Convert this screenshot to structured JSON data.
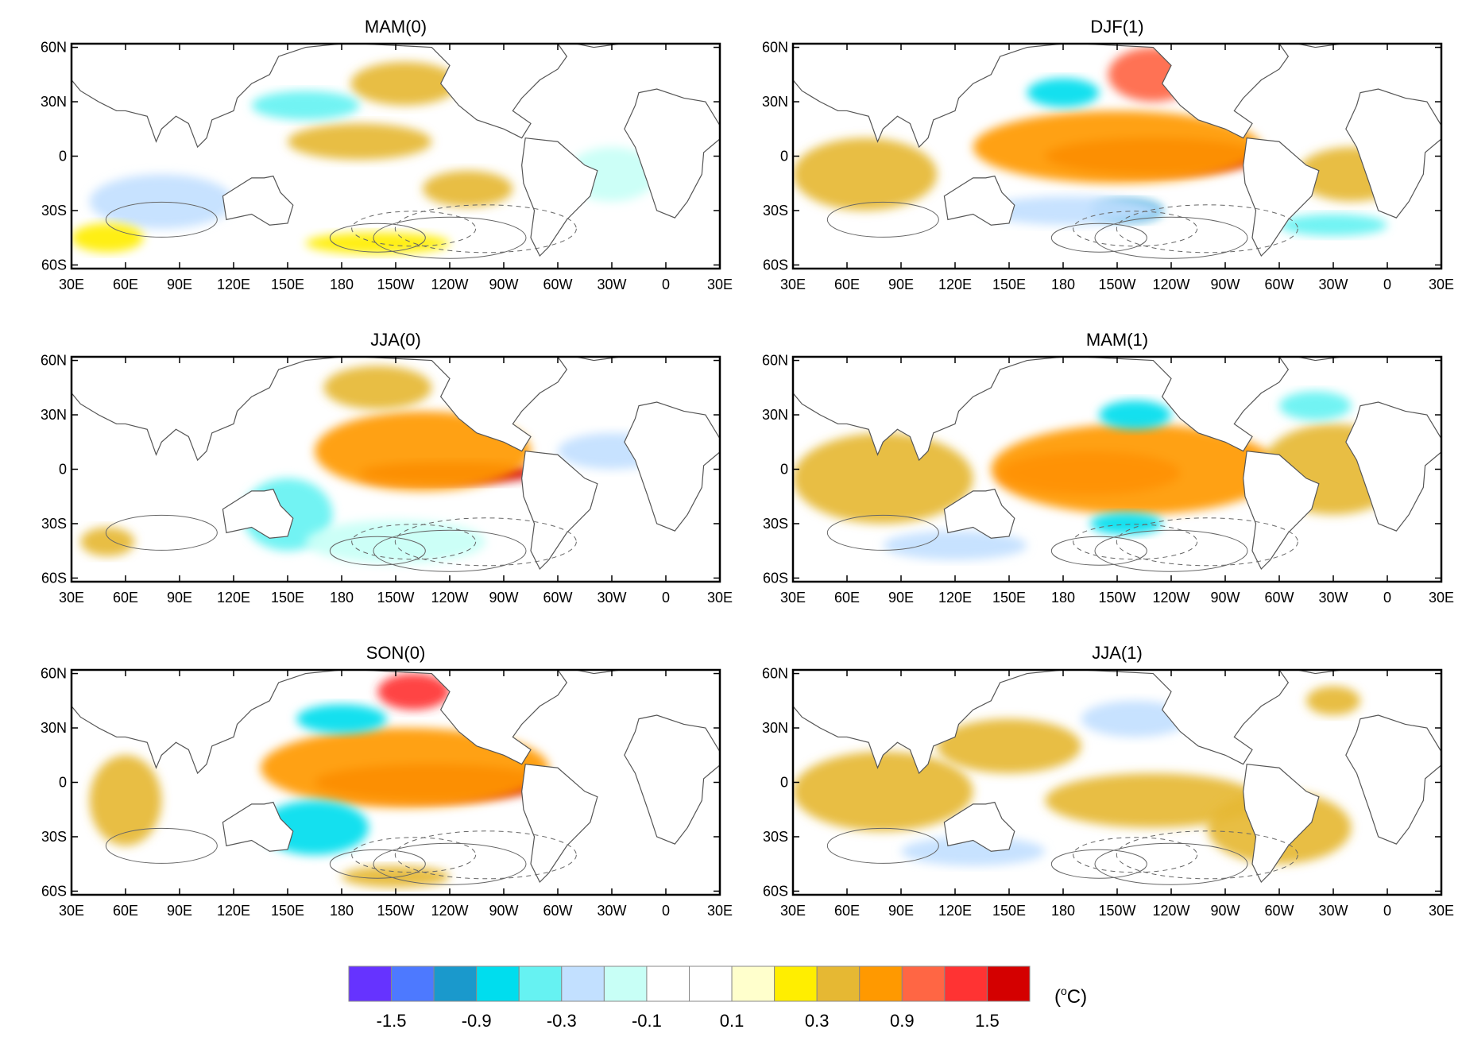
{
  "figure": {
    "unit_label": "(oC)",
    "unit_base": "(",
    "unit_sup": "o",
    "unit_tail": "C)"
  },
  "axes": {
    "lat_ticks": [
      "60N",
      "30N",
      "0",
      "30S",
      "60S"
    ],
    "lon_ticks": [
      "30E",
      "60E",
      "90E",
      "120E",
      "150E",
      "180",
      "150W",
      "120W",
      "90W",
      "60W",
      "30W",
      "0",
      "30E"
    ]
  },
  "panels": [
    {
      "id": "mam0",
      "title": "MAM(0)",
      "anomalies": [
        {
          "lon": 190,
          "lat": 8,
          "rx": 40,
          "ry": 10,
          "level": 11
        },
        {
          "lon": 215,
          "lat": 40,
          "rx": 30,
          "ry": 12,
          "level": 11
        },
        {
          "lon": 250,
          "lat": -18,
          "rx": 25,
          "ry": 10,
          "level": 11
        },
        {
          "lon": 160,
          "lat": 28,
          "rx": 30,
          "ry": 8,
          "level": 4
        },
        {
          "lon": 80,
          "lat": -25,
          "rx": 40,
          "ry": 15,
          "level": 5
        },
        {
          "lon": 50,
          "lat": -45,
          "rx": 20,
          "ry": 8,
          "level": 10
        },
        {
          "lon": 200,
          "lat": -48,
          "rx": 40,
          "ry": 6,
          "level": 10
        },
        {
          "lon": 330,
          "lat": -10,
          "rx": 25,
          "ry": 15,
          "level": 6
        }
      ]
    },
    {
      "id": "djf1",
      "title": "DJF(1)",
      "anomalies": [
        {
          "lon": 230,
          "lat": 0,
          "rx": 60,
          "ry": 10,
          "level": 15
        },
        {
          "lon": 210,
          "lat": 5,
          "rx": 80,
          "ry": 20,
          "level": 12
        },
        {
          "lon": 230,
          "lat": 45,
          "rx": 25,
          "ry": 15,
          "level": 13
        },
        {
          "lon": 180,
          "lat": 35,
          "rx": 20,
          "ry": 8,
          "level": 3
        },
        {
          "lon": 215,
          "lat": -30,
          "rx": 20,
          "ry": 6,
          "level": 2
        },
        {
          "lon": 70,
          "lat": -10,
          "rx": 40,
          "ry": 20,
          "level": 11
        },
        {
          "lon": 340,
          "lat": -10,
          "rx": 30,
          "ry": 15,
          "level": 11
        },
        {
          "lon": 330,
          "lat": -38,
          "rx": 30,
          "ry": 6,
          "level": 4
        },
        {
          "lon": 185,
          "lat": -30,
          "rx": 50,
          "ry": 8,
          "level": 5
        }
      ]
    },
    {
      "id": "jja0",
      "title": "JJA(0)",
      "anomalies": [
        {
          "lon": 240,
          "lat": -2,
          "rx": 50,
          "ry": 6,
          "level": 15
        },
        {
          "lon": 225,
          "lat": 10,
          "rx": 60,
          "ry": 22,
          "level": 12
        },
        {
          "lon": 200,
          "lat": 45,
          "rx": 30,
          "ry": 12,
          "level": 11
        },
        {
          "lon": 150,
          "lat": -25,
          "rx": 25,
          "ry": 20,
          "level": 4
        },
        {
          "lon": 210,
          "lat": -40,
          "rx": 50,
          "ry": 12,
          "level": 6
        },
        {
          "lon": 50,
          "lat": -40,
          "rx": 15,
          "ry": 8,
          "level": 11
        },
        {
          "lon": 330,
          "lat": 10,
          "rx": 30,
          "ry": 10,
          "level": 5
        }
      ]
    },
    {
      "id": "mam1",
      "title": "MAM(1)",
      "anomalies": [
        {
          "lon": 195,
          "lat": -2,
          "rx": 50,
          "ry": 12,
          "level": 14
        },
        {
          "lon": 220,
          "lat": 0,
          "rx": 80,
          "ry": 25,
          "level": 12
        },
        {
          "lon": 80,
          "lat": -5,
          "rx": 50,
          "ry": 25,
          "level": 11
        },
        {
          "lon": 330,
          "lat": 0,
          "rx": 40,
          "ry": 25,
          "level": 11
        },
        {
          "lon": 220,
          "lat": 30,
          "rx": 20,
          "ry": 8,
          "level": 3
        },
        {
          "lon": 215,
          "lat": -30,
          "rx": 20,
          "ry": 6,
          "level": 3
        },
        {
          "lon": 120,
          "lat": -42,
          "rx": 40,
          "ry": 8,
          "level": 5
        },
        {
          "lon": 320,
          "lat": 35,
          "rx": 20,
          "ry": 8,
          "level": 4
        }
      ]
    },
    {
      "id": "son0",
      "title": "SON(0)",
      "anomalies": [
        {
          "lon": 230,
          "lat": 0,
          "rx": 65,
          "ry": 10,
          "level": 15
        },
        {
          "lon": 215,
          "lat": 8,
          "rx": 80,
          "ry": 22,
          "level": 12
        },
        {
          "lon": 220,
          "lat": 50,
          "rx": 20,
          "ry": 10,
          "level": 14
        },
        {
          "lon": 180,
          "lat": 35,
          "rx": 25,
          "ry": 8,
          "level": 3
        },
        {
          "lon": 165,
          "lat": -25,
          "rx": 30,
          "ry": 15,
          "level": 3
        },
        {
          "lon": 60,
          "lat": -10,
          "rx": 20,
          "ry": 25,
          "level": 11
        },
        {
          "lon": 210,
          "lat": -52,
          "rx": 30,
          "ry": 6,
          "level": 11
        }
      ]
    },
    {
      "id": "jja1",
      "title": "JJA(1)",
      "anomalies": [
        {
          "lon": 80,
          "lat": -5,
          "rx": 50,
          "ry": 22,
          "level": 11
        },
        {
          "lon": 150,
          "lat": 20,
          "rx": 40,
          "ry": 15,
          "level": 11
        },
        {
          "lon": 230,
          "lat": -10,
          "rx": 60,
          "ry": 15,
          "level": 11
        },
        {
          "lon": 220,
          "lat": 35,
          "rx": 30,
          "ry": 10,
          "level": 5
        },
        {
          "lon": 300,
          "lat": -25,
          "rx": 40,
          "ry": 20,
          "level": 11
        },
        {
          "lon": 330,
          "lat": 45,
          "rx": 15,
          "ry": 8,
          "level": 11
        },
        {
          "lon": 130,
          "lat": -38,
          "rx": 40,
          "ry": 8,
          "level": 5
        }
      ]
    }
  ],
  "colorbar": {
    "colors": [
      "#6633ff",
      "#4d79ff",
      "#1a99cc",
      "#00ddee",
      "#66f2f2",
      "#c2e0ff",
      "#c8fff6",
      "#ffffff",
      "#ffffff",
      "#ffffcc",
      "#ffee00",
      "#e6b833",
      "#ff9900",
      "#ff6644",
      "#ff3333",
      "#d40000"
    ],
    "labels": [
      {
        "text": "-1.5",
        "index": 1
      },
      {
        "text": "-0.9",
        "index": 3
      },
      {
        "text": "-0.3",
        "index": 5
      },
      {
        "text": "-0.1",
        "index": 7
      },
      {
        "text": "0.1",
        "index": 9
      },
      {
        "text": "0.3",
        "index": 11
      },
      {
        "text": "0.9",
        "index": 13
      },
      {
        "text": "1.5",
        "index": 15
      }
    ]
  }
}
